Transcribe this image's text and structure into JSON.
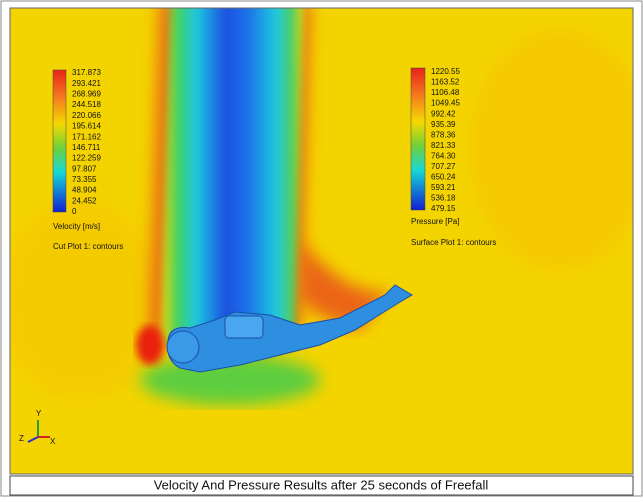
{
  "velocity_legend": {
    "ticks": [
      "317.873",
      "293.421",
      "268.969",
      "244.518",
      "220.066",
      "195.614",
      "171.162",
      "146.711",
      "122.259",
      "97.807",
      "73.355",
      "48.904",
      "24.452",
      "0"
    ],
    "title": "Velocity [m/s]",
    "plot_label": "Cut Plot 1: contours"
  },
  "pressure_legend": {
    "ticks": [
      "1220.55",
      "1163.52",
      "1106.48",
      "1049.45",
      "992.42",
      "935.39",
      "878.36",
      "821.33",
      "764.30",
      "707.27",
      "650.24",
      "593.21",
      "536.18",
      "479.15"
    ],
    "title": "Pressure [Pa]",
    "plot_label": "Surface Plot 1: contours"
  },
  "axes": {
    "y": "Y",
    "z": "Z",
    "x": "X"
  },
  "caption": "Velocity And Pressure Results after 25 seconds of Freefall"
}
